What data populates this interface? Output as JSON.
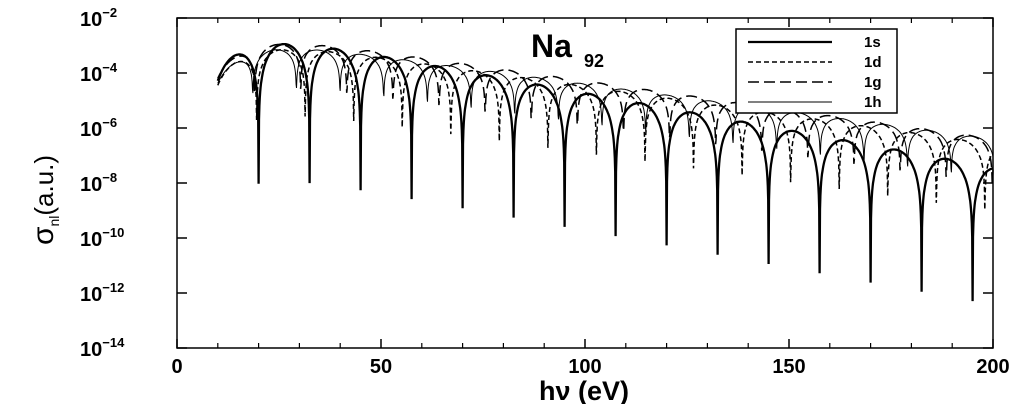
{
  "chart_data": {
    "type": "line",
    "annotation": {
      "main": "Na",
      "sub": "92"
    },
    "xlabel": "hν (eV)",
    "ylabel": {
      "base": "σ",
      "sub": "nl",
      "rest": "(a.u.)"
    },
    "xlim": [
      0,
      200
    ],
    "ylim_log10": [
      -14,
      -2
    ],
    "yscale": "log",
    "x_ticks": [
      "0",
      "50",
      "100",
      "150",
      "200"
    ],
    "y_ticks": [
      {
        "base": "10",
        "exp": "−2"
      },
      {
        "base": "10",
        "exp": "−4"
      },
      {
        "base": "10",
        "exp": "−6"
      },
      {
        "base": "10",
        "exp": "−8"
      },
      {
        "base": "10",
        "exp": "−10"
      },
      {
        "base": "10",
        "exp": "−12"
      },
      {
        "base": "10",
        "exp": "−14"
      }
    ],
    "legend_position": "top-right",
    "grid": false,
    "series": [
      {
        "name": "1s",
        "line_style": "solid-thick",
        "x_start": 10.0,
        "first_peak_log10": -2.3,
        "period": 12.5,
        "peak_decay_per_eV": 0.027,
        "node_depth": 5.0
      },
      {
        "name": "1d",
        "line_style": "short-dash",
        "x_start": 10.0,
        "first_peak_log10": -2.6,
        "period": 11.9,
        "peak_decay_per_eV": 0.021,
        "node_depth": 3.2
      },
      {
        "name": "1g",
        "line_style": "long-dash",
        "x_start": 10.0,
        "first_peak_log10": -2.4,
        "period": 11.3,
        "peak_decay_per_eV": 0.021,
        "node_depth": 2.5
      },
      {
        "name": "1h",
        "line_style": "solid-thin",
        "x_start": 10.0,
        "first_peak_log10": -2.6,
        "period": 10.7,
        "peak_decay_per_eV": 0.02,
        "node_depth": 2.2
      }
    ]
  }
}
